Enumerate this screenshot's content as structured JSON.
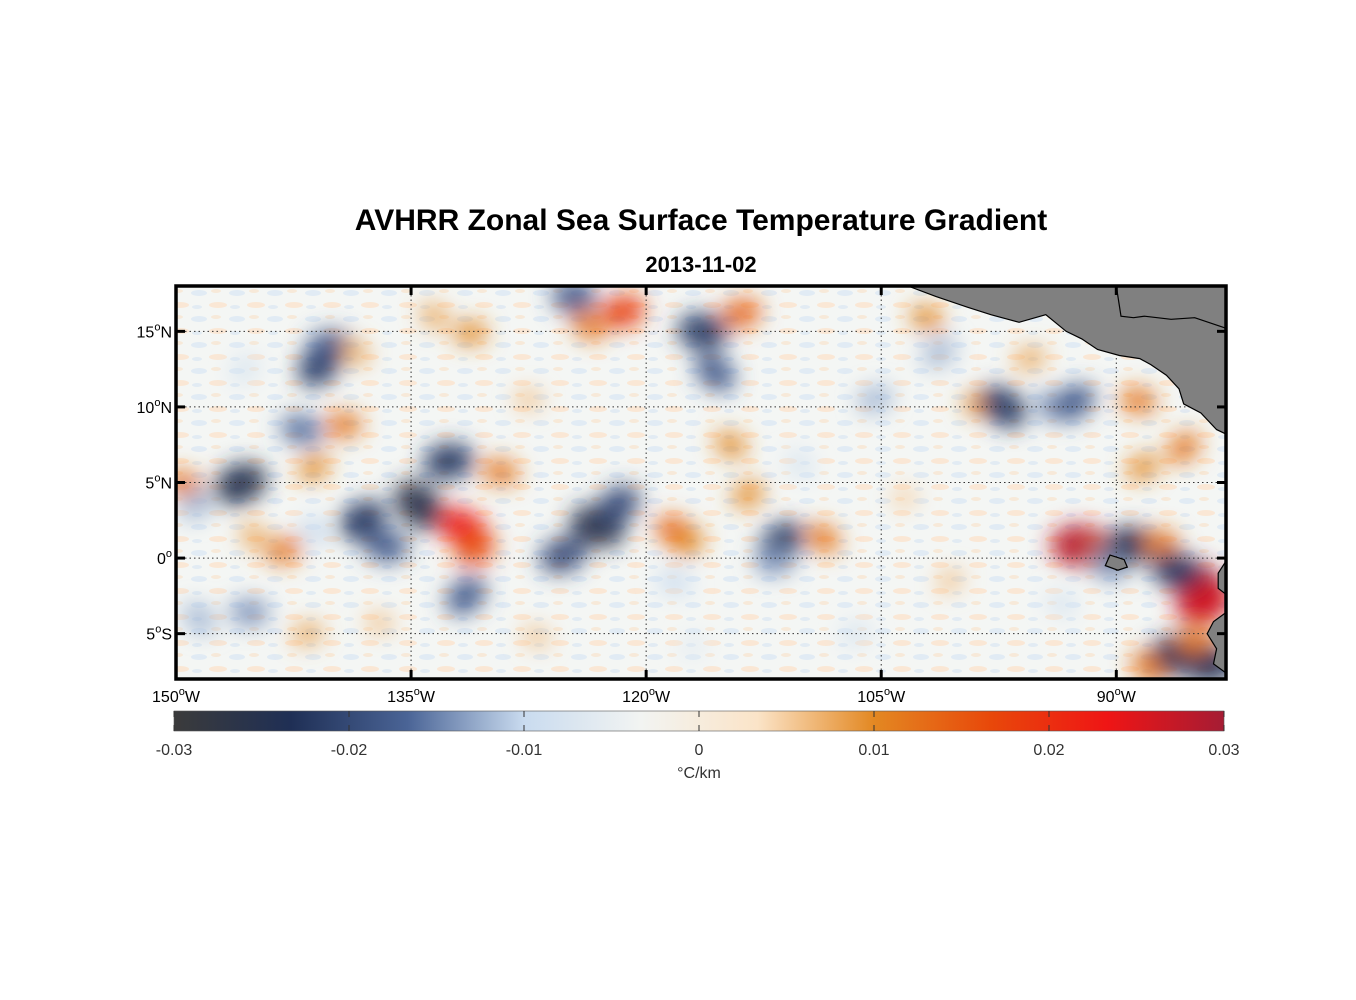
{
  "title": "AVHRR Zonal Sea Surface Temperature Gradient",
  "subtitle": "2013-11-02",
  "map": {
    "lon_range": [
      -150,
      -83
    ],
    "lat_range": [
      -8,
      18
    ],
    "grid": true,
    "land_color": "#808080",
    "x_ticks": [
      {
        "lon": -150,
        "label": "150",
        "suffix": "W"
      },
      {
        "lon": -135,
        "label": "135",
        "suffix": "W"
      },
      {
        "lon": -120,
        "label": "120",
        "suffix": "W"
      },
      {
        "lon": -105,
        "label": "105",
        "suffix": "W"
      },
      {
        "lon": -90,
        "label": "90",
        "suffix": "W"
      }
    ],
    "y_ticks": [
      {
        "lat": 15,
        "label": "15",
        "suffix": "N"
      },
      {
        "lat": 10,
        "label": "10",
        "suffix": "N"
      },
      {
        "lat": 5,
        "label": "5",
        "suffix": "N"
      },
      {
        "lat": 0,
        "label": "0",
        "suffix": ""
      },
      {
        "lat": -5,
        "label": "5",
        "suffix": "S"
      }
    ],
    "degree_symbol": "o"
  },
  "colorbar": {
    "range": [
      -0.03,
      0.03
    ],
    "tick_values": [
      -0.03,
      -0.02,
      -0.01,
      0,
      0.01,
      0.02,
      0.03
    ],
    "tick_labels": [
      "-0.03",
      "-0.02",
      "-0.01",
      "0",
      "0.01",
      "0.02",
      "0.03"
    ],
    "unit_label": "°C/km",
    "colors": [
      "#3b3b3b",
      "#1f2f55",
      "#4a6496",
      "#c9dbef",
      "#f2f4f2",
      "#fbe4c8",
      "#e38822",
      "#e8480a",
      "#ef1515",
      "#a51c34"
    ]
  },
  "features": [
    {
      "lon": -140.8,
      "lat": 12.8,
      "value": -0.022
    },
    {
      "lon": -140.2,
      "lat": 14.0,
      "value": -0.018
    },
    {
      "lon": -138.6,
      "lat": 13.6,
      "value": 0.008
    },
    {
      "lon": -145.9,
      "lat": 4.9,
      "value": -0.025
    },
    {
      "lon": -142.0,
      "lat": 8.5,
      "value": -0.016
    },
    {
      "lon": -141.2,
      "lat": 6.0,
      "value": 0.01
    },
    {
      "lon": -139.3,
      "lat": 8.8,
      "value": 0.012
    },
    {
      "lon": -145.0,
      "lat": 1.4,
      "value": 0.008
    },
    {
      "lon": -143.1,
      "lat": 0.5,
      "value": 0.012
    },
    {
      "lon": -149.5,
      "lat": 4.9,
      "value": 0.012
    },
    {
      "lon": -148.7,
      "lat": 3.5,
      "value": -0.012
    },
    {
      "lon": -145.3,
      "lat": -3.6,
      "value": -0.014
    },
    {
      "lon": -148.5,
      "lat": -4.0,
      "value": -0.012
    },
    {
      "lon": -141.6,
      "lat": -5.0,
      "value": 0.008
    },
    {
      "lon": -141.1,
      "lat": 1.8,
      "value": -0.01
    },
    {
      "lon": -138.1,
      "lat": 2.5,
      "value": -0.022
    },
    {
      "lon": -136.6,
      "lat": 0.8,
      "value": -0.018
    },
    {
      "lon": -134.5,
      "lat": 3.5,
      "value": -0.026
    },
    {
      "lon": -132.6,
      "lat": 6.4,
      "value": -0.022
    },
    {
      "lon": -131.7,
      "lat": 2.0,
      "value": 0.022
    },
    {
      "lon": -130.9,
      "lat": 0.6,
      "value": 0.016
    },
    {
      "lon": -129.3,
      "lat": 5.7,
      "value": 0.012
    },
    {
      "lon": -131.5,
      "lat": -2.5,
      "value": -0.018
    },
    {
      "lon": -131.2,
      "lat": 14.9,
      "value": 0.01
    },
    {
      "lon": -133.5,
      "lat": 16.0,
      "value": 0.008
    },
    {
      "lon": -125.3,
      "lat": 0.2,
      "value": -0.02
    },
    {
      "lon": -123.1,
      "lat": 2.1,
      "value": -0.026
    },
    {
      "lon": -121.8,
      "lat": 3.5,
      "value": -0.02
    },
    {
      "lon": -124.6,
      "lat": 17.3,
      "value": -0.018
    },
    {
      "lon": -123.7,
      "lat": 15.4,
      "value": 0.012
    },
    {
      "lon": -121.5,
      "lat": 16.3,
      "value": 0.018
    },
    {
      "lon": -118.2,
      "lat": 1.8,
      "value": 0.014
    },
    {
      "lon": -117.3,
      "lat": 1.0,
      "value": 0.01
    },
    {
      "lon": -116.4,
      "lat": 15.0,
      "value": -0.022
    },
    {
      "lon": -115.6,
      "lat": 12.3,
      "value": -0.018
    },
    {
      "lon": -113.9,
      "lat": 16.2,
      "value": 0.014
    },
    {
      "lon": -114.6,
      "lat": 7.5,
      "value": 0.01
    },
    {
      "lon": -113.5,
      "lat": 4.2,
      "value": 0.01
    },
    {
      "lon": -118.2,
      "lat": -1.6,
      "value": -0.01
    },
    {
      "lon": -111.4,
      "lat": 1.0,
      "value": -0.022
    },
    {
      "lon": -111.8,
      "lat": -0.2,
      "value": -0.014
    },
    {
      "lon": -108.7,
      "lat": 1.3,
      "value": 0.012
    },
    {
      "lon": -105.4,
      "lat": 10.5,
      "value": -0.012
    },
    {
      "lon": -102.1,
      "lat": 15.9,
      "value": 0.01
    },
    {
      "lon": -101.3,
      "lat": 13.6,
      "value": -0.012
    },
    {
      "lon": -98.7,
      "lat": 10.2,
      "value": 0.01
    },
    {
      "lon": -97.2,
      "lat": 10.0,
      "value": -0.022
    },
    {
      "lon": -95.5,
      "lat": 13.2,
      "value": 0.008
    },
    {
      "lon": -94.0,
      "lat": 10.0,
      "value": -0.014
    },
    {
      "lon": -92.7,
      "lat": 10.3,
      "value": -0.018
    },
    {
      "lon": -92.3,
      "lat": 0.8,
      "value": 0.028
    },
    {
      "lon": -90.7,
      "lat": 0.0,
      "value": 0.012
    },
    {
      "lon": -89.2,
      "lat": 0.8,
      "value": -0.024
    },
    {
      "lon": -90.5,
      "lat": -0.5,
      "value": -0.014
    },
    {
      "lon": -88.3,
      "lat": 6.0,
      "value": 0.01
    },
    {
      "lon": -88.6,
      "lat": 10.4,
      "value": 0.012
    },
    {
      "lon": -85.7,
      "lat": 7.3,
      "value": 0.012
    },
    {
      "lon": -87.2,
      "lat": 1.0,
      "value": 0.012
    },
    {
      "lon": -84.8,
      "lat": -1.8,
      "value": 0.03
    },
    {
      "lon": -84.4,
      "lat": -3.0,
      "value": 0.026
    },
    {
      "lon": -86.2,
      "lat": -0.8,
      "value": -0.022
    },
    {
      "lon": -86.6,
      "lat": -6.5,
      "value": -0.024
    },
    {
      "lon": -84.1,
      "lat": -7.0,
      "value": -0.024
    },
    {
      "lon": -88.0,
      "lat": -7.2,
      "value": 0.012
    },
    {
      "lon": -85.0,
      "lat": -5.5,
      "value": 0.012
    },
    {
      "lon": -93.5,
      "lat": -3.0,
      "value": -0.008
    },
    {
      "lon": -100.6,
      "lat": -1.5,
      "value": 0.006
    },
    {
      "lon": -127.5,
      "lat": 10.5,
      "value": 0.006
    },
    {
      "lon": -110.2,
      "lat": 6.2,
      "value": -0.008
    },
    {
      "lon": -106.6,
      "lat": -5.0,
      "value": -0.008
    },
    {
      "lon": -127.0,
      "lat": -5.2,
      "value": 0.006
    },
    {
      "lon": -117.0,
      "lat": -5.8,
      "value": -0.006
    },
    {
      "lon": -137.0,
      "lat": -4.3,
      "value": 0.006
    },
    {
      "lon": -145.6,
      "lat": 12.5,
      "value": -0.008
    },
    {
      "lon": -103.5,
      "lat": 4.0,
      "value": 0.005
    }
  ],
  "land": [
    [
      [
        -103.3,
        18.0
      ],
      [
        -101.5,
        17.3
      ],
      [
        -99.5,
        16.6
      ],
      [
        -98.0,
        16.1
      ],
      [
        -96.2,
        15.6
      ],
      [
        -94.5,
        16.1
      ],
      [
        -93.2,
        15.0
      ],
      [
        -92.2,
        14.5
      ],
      [
        -91.2,
        13.8
      ],
      [
        -89.8,
        13.4
      ],
      [
        -88.5,
        13.2
      ],
      [
        -87.8,
        12.8
      ],
      [
        -86.8,
        12.1
      ],
      [
        -86.0,
        11.2
      ],
      [
        -85.7,
        10.2
      ],
      [
        -84.6,
        9.6
      ],
      [
        -83.6,
        8.5
      ],
      [
        -83.0,
        8.2
      ],
      [
        -83.0,
        18.0
      ]
    ],
    [
      [
        -90.0,
        18.0
      ],
      [
        -89.7,
        16.0
      ],
      [
        -88.9,
        15.9
      ],
      [
        -88.2,
        16.0
      ],
      [
        -86.5,
        15.8
      ],
      [
        -85.0,
        15.9
      ],
      [
        -83.0,
        15.2
      ],
      [
        -83.0,
        18.0
      ]
    ],
    [
      [
        -83.0,
        -0.2
      ],
      [
        -83.5,
        -1.0
      ],
      [
        -83.5,
        -2.0
      ],
      [
        -83.0,
        -2.4
      ]
    ],
    [
      [
        -83.0,
        -3.6
      ],
      [
        -83.8,
        -4.2
      ],
      [
        -84.2,
        -5.0
      ],
      [
        -83.6,
        -6.0
      ],
      [
        -83.8,
        -7.0
      ],
      [
        -83.0,
        -7.6
      ]
    ],
    [
      [
        -90.4,
        0.2
      ],
      [
        -89.5,
        -0.1
      ],
      [
        -89.3,
        -0.6
      ],
      [
        -89.9,
        -0.8
      ],
      [
        -90.7,
        -0.5
      ]
    ]
  ]
}
